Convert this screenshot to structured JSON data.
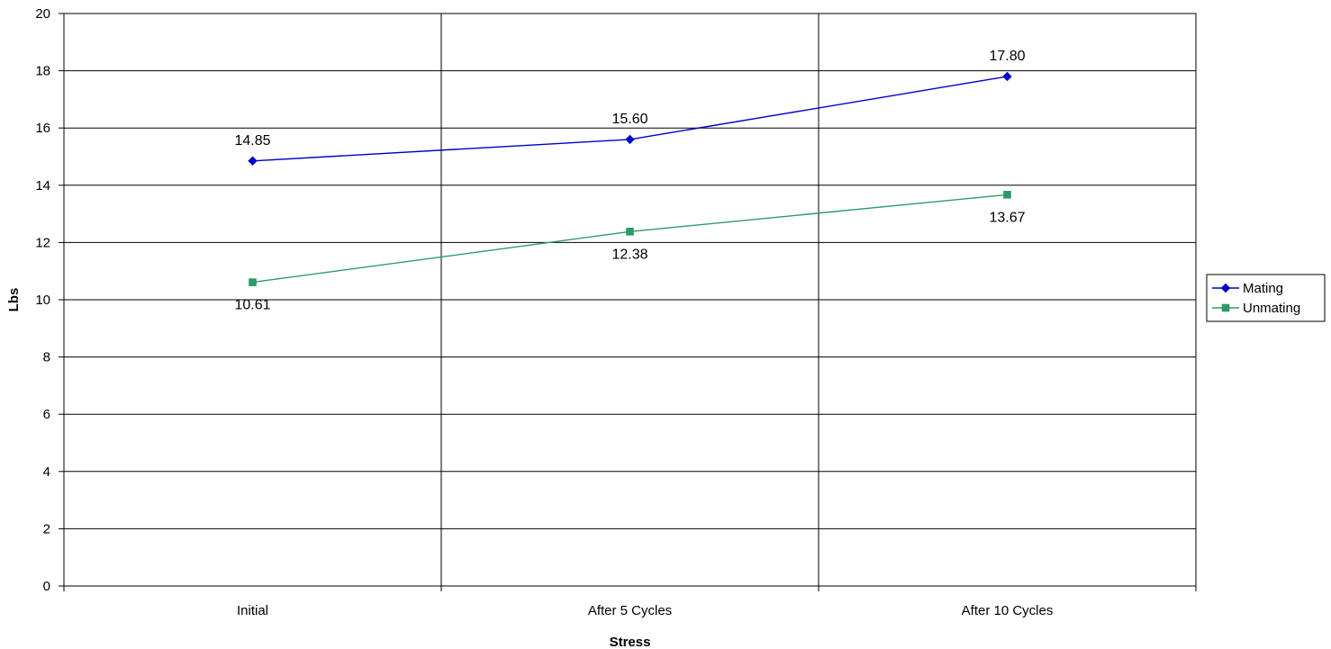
{
  "chart_data": {
    "type": "line",
    "title": "",
    "xlabel": "Stress",
    "ylabel": "Lbs",
    "categories": [
      "Initial",
      "After 5 Cycles",
      "After 10 Cycles"
    ],
    "ylim": [
      0,
      20
    ],
    "yticks": [
      0,
      2,
      4,
      6,
      8,
      10,
      12,
      14,
      16,
      18,
      20
    ],
    "grid": true,
    "legend_position": "right",
    "series": [
      {
        "name": "Mating",
        "values": [
          14.85,
          15.6,
          17.8
        ],
        "labels": [
          "14.85",
          "15.60",
          "17.80"
        ],
        "color": "#0000cc",
        "marker": "diamond",
        "label_position": "above"
      },
      {
        "name": "Unmating",
        "values": [
          10.61,
          12.38,
          13.67
        ],
        "labels": [
          "10.61",
          "12.38",
          "13.67"
        ],
        "color": "#2e9a6a",
        "marker": "square",
        "label_position": "below"
      }
    ]
  }
}
